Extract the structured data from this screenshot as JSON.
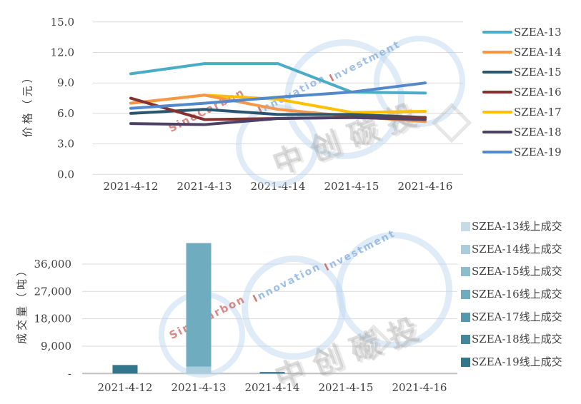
{
  "page": {
    "background": "#FFFFFF"
  },
  "watermark": {
    "brand_red": "SinoCarbon",
    "brand_blue_line1": "nnovation",
    "brand_blue_line2": "nvestment",
    "lead_letter": "I",
    "brand_cjk": "中创碳投"
  },
  "chart_data": [
    {
      "type": "line",
      "title": "",
      "xlabel": "",
      "ylabel": "价格（元）",
      "categories": [
        "2021-4-12",
        "2021-4-13",
        "2021-4-14",
        "2021-4-15",
        "2021-4-16"
      ],
      "ylim": [
        0,
        15
      ],
      "yticks": [
        0,
        3,
        6,
        9,
        12,
        15
      ],
      "ytick_labels": [
        "0.0",
        "3.0",
        "6.0",
        "9.0",
        "12.0",
        "15.0"
      ],
      "grid": "horizontal",
      "legend_position": "right",
      "series": [
        {
          "name": "SZEA-13",
          "color": "#4BACC6",
          "values": [
            9.9,
            10.9,
            10.9,
            8.1,
            8.0
          ]
        },
        {
          "name": "SZEA-14",
          "color": "#F79646",
          "values": [
            7.0,
            7.8,
            6.4,
            5.7,
            5.2
          ]
        },
        {
          "name": "SZEA-15",
          "color": "#29556F",
          "values": [
            6.0,
            6.4,
            5.9,
            5.9,
            5.6
          ]
        },
        {
          "name": "SZEA-16",
          "color": "#84312F",
          "values": [
            7.5,
            5.4,
            5.5,
            5.6,
            5.6
          ]
        },
        {
          "name": "SZEA-17",
          "color": "#FFC000",
          "values": [
            7.0,
            7.8,
            7.4,
            6.1,
            6.2
          ]
        },
        {
          "name": "SZEA-18",
          "color": "#4D4167",
          "values": [
            5.0,
            4.9,
            5.5,
            5.6,
            5.4
          ]
        },
        {
          "name": "SZEA-19",
          "color": "#5389CB",
          "values": [
            6.5,
            7.0,
            7.6,
            8.1,
            9.0
          ]
        }
      ]
    },
    {
      "type": "bar",
      "stacked": true,
      "title": "",
      "xlabel": "",
      "ylabel": "成交量（吨）",
      "categories": [
        "2021-4-12",
        "2021-4-13",
        "2021-4-14",
        "2021-4-15",
        "2021-4-16"
      ],
      "ylim": [
        0,
        45000
      ],
      "yticks": [
        0,
        9000,
        18000,
        27000,
        36000
      ],
      "ytick_labels": [
        "-",
        "9,000",
        "18,000",
        "27,000",
        "36,000"
      ],
      "grid": "horizontal",
      "legend_position": "right",
      "series": [
        {
          "name": "SZEA-13线上成交",
          "color": "#C5DCE7",
          "values": [
            0,
            0,
            0,
            0,
            0
          ]
        },
        {
          "name": "SZEA-14线上成交",
          "color": "#A9CDDC",
          "values": [
            0,
            2300,
            0,
            0,
            0
          ]
        },
        {
          "name": "SZEA-15线上成交",
          "color": "#8CBDCE",
          "values": [
            0,
            0,
            0,
            0,
            0
          ]
        },
        {
          "name": "SZEA-16线上成交",
          "color": "#70ACC0",
          "values": [
            0,
            40600,
            0,
            0,
            0
          ]
        },
        {
          "name": "SZEA-17线上成交",
          "color": "#5498B0",
          "values": [
            0,
            0,
            0,
            0,
            0
          ]
        },
        {
          "name": "SZEA-18线上成交",
          "color": "#44869E",
          "values": [
            0,
            0,
            0,
            0,
            0
          ]
        },
        {
          "name": "SZEA-19线上成交",
          "color": "#31768C",
          "values": [
            2800,
            0,
            500,
            0,
            0
          ]
        }
      ]
    }
  ]
}
